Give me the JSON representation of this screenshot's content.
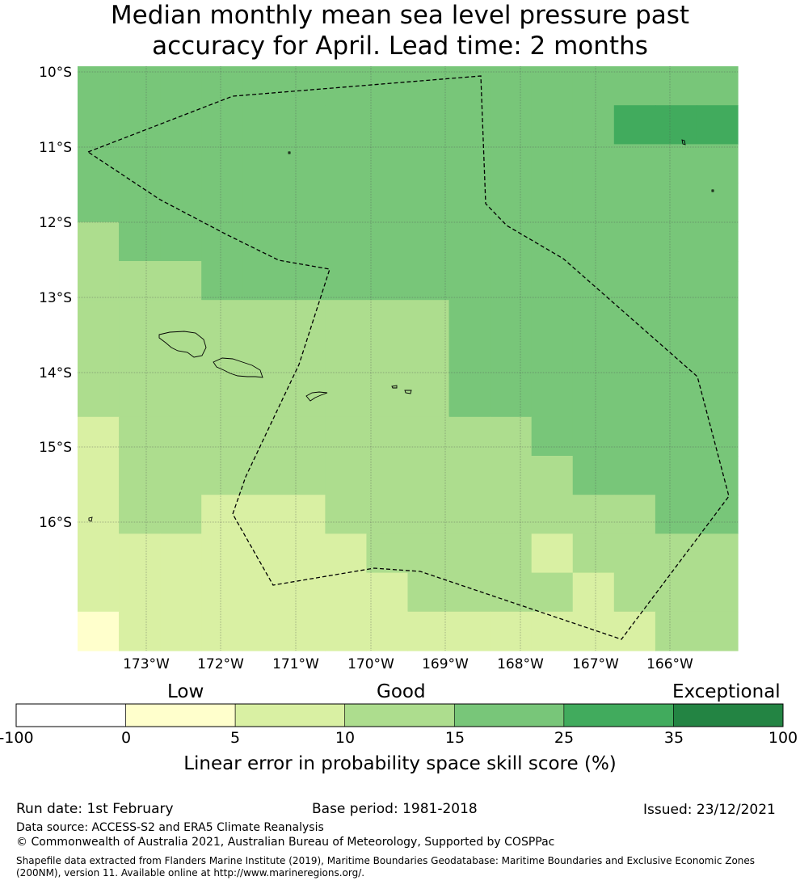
{
  "title": {
    "line1": "Median monthly mean sea level pressure past",
    "line2": "accuracy for April. Lead time: 2 months"
  },
  "map": {
    "lat_labels": [
      "10°S",
      "11°S",
      "12°S",
      "13°S",
      "14°S",
      "15°S",
      "16°S"
    ],
    "lon_labels": [
      "173°W",
      "172°W",
      "171°W",
      "170°W",
      "169°W",
      "168°W",
      "167°W",
      "166°W"
    ],
    "colors": [
      "#ffffff",
      "#ffffcc",
      "#d9f0a3",
      "#addd8e",
      "#78c679",
      "#41ab5d",
      "#238443"
    ],
    "grid": [
      [
        4,
        4,
        4,
        4,
        4,
        4,
        4,
        4,
        4,
        4,
        4,
        4,
        4,
        4,
        4,
        4
      ],
      [
        4,
        4,
        4,
        4,
        4,
        4,
        4,
        4,
        4,
        4,
        4,
        4,
        4,
        5,
        5,
        5
      ],
      [
        4,
        4,
        4,
        4,
        4,
        4,
        4,
        4,
        4,
        4,
        4,
        4,
        4,
        4,
        4,
        4
      ],
      [
        4,
        4,
        4,
        4,
        4,
        4,
        4,
        4,
        4,
        4,
        4,
        4,
        4,
        4,
        4,
        4
      ],
      [
        3,
        4,
        4,
        4,
        4,
        4,
        4,
        4,
        4,
        4,
        4,
        4,
        4,
        4,
        4,
        4
      ],
      [
        3,
        3,
        3,
        4,
        4,
        4,
        4,
        4,
        4,
        4,
        4,
        4,
        4,
        4,
        4,
        4
      ],
      [
        3,
        3,
        3,
        3,
        3,
        3,
        3,
        3,
        3,
        4,
        4,
        4,
        4,
        4,
        4,
        4
      ],
      [
        3,
        3,
        3,
        3,
        3,
        3,
        3,
        3,
        3,
        4,
        4,
        4,
        4,
        4,
        4,
        4
      ],
      [
        3,
        3,
        3,
        3,
        3,
        3,
        3,
        3,
        3,
        4,
        4,
        4,
        4,
        4,
        4,
        4
      ],
      [
        2,
        3,
        3,
        3,
        3,
        3,
        3,
        3,
        3,
        3,
        3,
        4,
        4,
        4,
        4,
        4
      ],
      [
        2,
        3,
        3,
        3,
        3,
        3,
        3,
        3,
        3,
        3,
        3,
        3,
        4,
        4,
        4,
        4
      ],
      [
        2,
        3,
        3,
        2,
        2,
        2,
        3,
        3,
        3,
        3,
        3,
        3,
        3,
        3,
        4,
        4
      ],
      [
        2,
        2,
        2,
        2,
        2,
        2,
        2,
        3,
        3,
        3,
        3,
        2,
        3,
        3,
        3,
        3
      ],
      [
        2,
        2,
        2,
        2,
        2,
        2,
        2,
        2,
        3,
        3,
        3,
        3,
        2,
        3,
        3,
        3
      ],
      [
        1,
        2,
        2,
        2,
        2,
        2,
        2,
        2,
        2,
        2,
        2,
        2,
        2,
        2,
        3,
        3
      ]
    ]
  },
  "colorbar": {
    "categories": [
      "Low",
      "Good",
      "Exceptional"
    ],
    "ticks": [
      "-100",
      "0",
      "5",
      "10",
      "15",
      "25",
      "35",
      "100"
    ],
    "title": "Linear error in probability space skill score (%)"
  },
  "footer": {
    "run_date": "Run date: 1st February",
    "base_period": "Base period: 1981-2018",
    "issued": "Issued: 23/12/2021",
    "data_source": "Data source: ACCESS-S2 and ERA5 Climate Reanalysis",
    "copyright": "© Commonwealth of Australia 2021, Australian Bureau of Meteorology, Supported by COSPPac",
    "shapefile": "Shapefile data extracted from Flanders Marine Institute (2019), Maritime Boundaries Geodatabase: Maritime Boundaries and Exclusive Economic Zones (200NM), version 11. Available online at http://www.marineregions.org/."
  }
}
